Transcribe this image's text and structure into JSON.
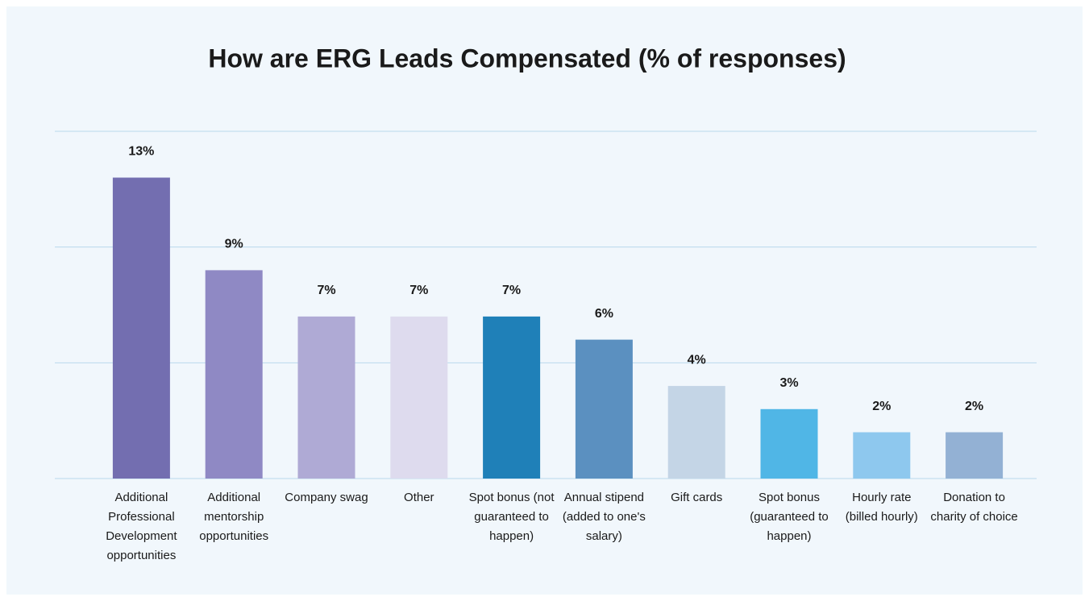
{
  "chart_data": {
    "type": "bar",
    "title": "How are ERG Leads Compensated (% of responses)",
    "categories": [
      "Additional Professional Development opportunities",
      "Additional mentorship opportunities",
      "Company swag",
      "Other",
      "Spot bonus (not guaranteed to happen)",
      "Annual stipend (added to one's salary)",
      "Gift cards",
      "Spot bonus (guaranteed to happen)",
      "Hourly rate (billed hourly)",
      "Donation to charity of choice"
    ],
    "values": [
      13,
      9,
      7,
      7,
      7,
      6,
      4,
      3,
      2,
      2
    ],
    "value_labels": [
      "13%",
      "9%",
      "7%",
      "7%",
      "7%",
      "6%",
      "4%",
      "3%",
      "2%",
      "2%"
    ],
    "colors": [
      "#736eb0",
      "#8f89c4",
      "#afaad5",
      "#dedbee",
      "#1f80b8",
      "#5b90c0",
      "#c4d5e6",
      "#50b6e6",
      "#8ec8ee",
      "#93b1d4"
    ],
    "ylim": [
      0,
      15
    ],
    "yticks": [
      0,
      5,
      10,
      15
    ],
    "grid": true
  }
}
